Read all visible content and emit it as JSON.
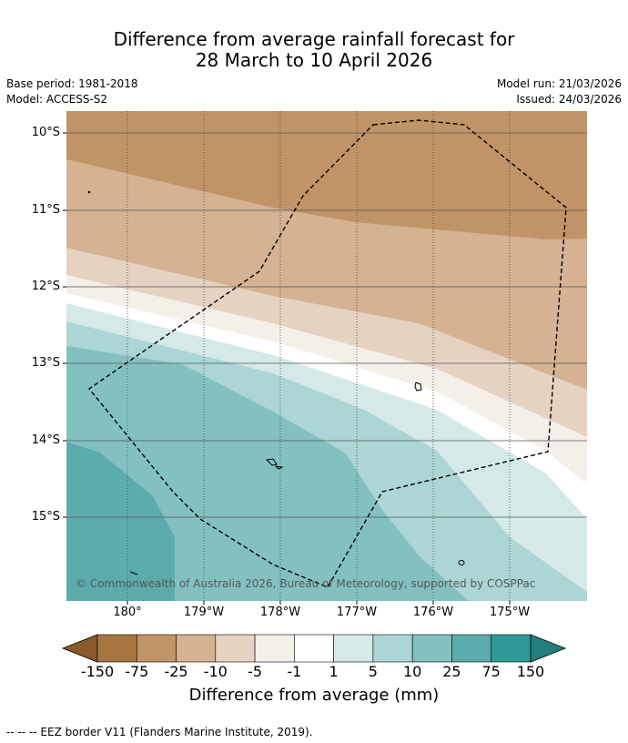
{
  "title": {
    "line1": "Difference from average rainfall forecast for",
    "line2": "28 March to 10 April 2026"
  },
  "meta": {
    "base_period": "Base period: 1981-2018",
    "model": "Model: ACCESS-S2",
    "model_run": "Model run: 21/03/2026",
    "issued": "Issued: 24/03/2026"
  },
  "map": {
    "lat_labels": [
      "10°S",
      "11°S",
      "12°S",
      "13°S",
      "14°S",
      "15°S"
    ],
    "lon_labels": [
      "180°",
      "179°W",
      "178°W",
      "177°W",
      "176°W",
      "175°W"
    ],
    "copyright": "© Commonwealth of Australia 2026, Bureau of Meteorology, supported by COSPPac",
    "colors": {
      "n150": "#a67540",
      "n75": "#c09466",
      "n25": "#d4b292",
      "n10": "#e5d2c0",
      "n5": "#f4efe9",
      "zero": "#ffffff",
      "p1": "#d5e9e9",
      "p5": "#acd5d5",
      "p10": "#83c1c1",
      "p25": "#5dacac",
      "p75": "#2f9a98"
    }
  },
  "colorbar": {
    "labels": [
      "-150",
      "-75",
      "-25",
      "-10",
      "-5",
      "-1",
      "1",
      "5",
      "10",
      "25",
      "75",
      "150"
    ],
    "colors": [
      "#a67540",
      "#c09466",
      "#d4b292",
      "#e5d2c0",
      "#f4efe9",
      "#ffffff",
      "#d5e9e9",
      "#acd5d5",
      "#83c1c1",
      "#5dacac",
      "#2f9a98"
    ],
    "low_color": "#8a5a2b",
    "high_color": "#237f7e",
    "title": "Difference from average (mm)"
  },
  "footer": "--  --  -- EEZ border V11 (Flanders Marine Institute, 2019)."
}
